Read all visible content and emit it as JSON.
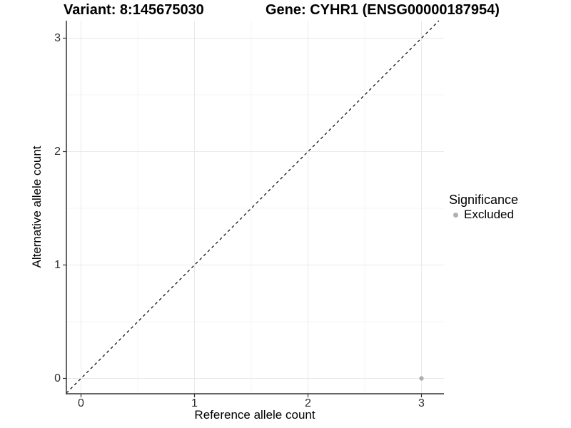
{
  "chart_data": {
    "type": "scatter",
    "title_variant": "Variant: 8:145675030",
    "title_gene": "Gene: CYHR1 (ENSG00000187954)",
    "xlabel": "Reference allele count",
    "ylabel": "Alternative allele count",
    "x_ticks": [
      0,
      1,
      2,
      3
    ],
    "y_ticks": [
      0,
      1,
      2,
      3
    ],
    "xlim": [
      -0.13,
      3.2
    ],
    "ylim": [
      -0.14,
      3.15
    ],
    "grid": "major+minor",
    "legend_position": "right",
    "identity_line": {
      "type": "abline",
      "slope": 1,
      "intercept": 0,
      "linetype": "dashed",
      "color": "#000000"
    },
    "series": [
      {
        "name": "Excluded",
        "marker": "circle",
        "color": "#b0b0b0",
        "points": [
          {
            "x": 3,
            "y": 0
          }
        ]
      }
    ],
    "legend": {
      "title": "Significance",
      "entries": [
        {
          "label": "Excluded",
          "color": "#b0b0b0",
          "marker": "circle"
        }
      ]
    }
  },
  "colors": {
    "background": "#ffffff",
    "grid_major": "#e9e9e9",
    "grid_minor": "#f5f5f5",
    "axis_line": "#333333",
    "tick_mark": "#333333",
    "tick_text": "#2e2e2e",
    "point": "#b0b0b0",
    "title_text": "#000000"
  }
}
